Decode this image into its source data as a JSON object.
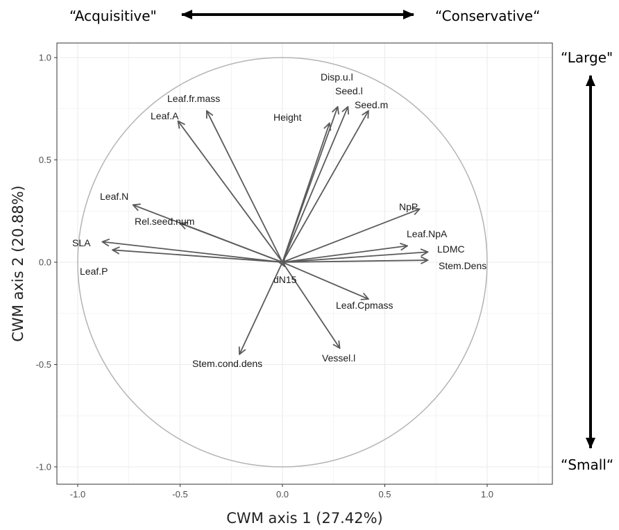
{
  "annotations": {
    "left_top": "“Acquisitive\"",
    "right_top": "“Conservative“",
    "right_top_axis": "“Large\"",
    "right_bottom_axis": "“Small“"
  },
  "chart_data": {
    "type": "scatter",
    "subtype": "pca-correlation-circle",
    "title": "",
    "xlabel": "CWM axis 1 (27.42%)",
    "ylabel": "CWM axis 2 (20.88%)",
    "xlim": [
      -1.0,
      1.0
    ],
    "ylim": [
      -1.0,
      1.0
    ],
    "xticks": [
      "-1.0",
      "-0.5",
      "0.0",
      "0.5",
      "1.0"
    ],
    "yticks": [
      "1.0",
      "0.5",
      "0.0",
      "-0.5",
      "-1.0"
    ],
    "grid": true,
    "unit_circle": true,
    "colors": {
      "arrow": "#5a5a5a",
      "circle": "#b3b3b3",
      "grid": "#ebebeb",
      "border": "#333333"
    },
    "vectors": [
      {
        "label": "Leaf.A",
        "x": -0.51,
        "y": 0.69
      },
      {
        "label": "Leaf.fr.mass",
        "x": -0.37,
        "y": 0.74
      },
      {
        "label": "Height",
        "x": 0.23,
        "y": 0.68
      },
      {
        "label": "Disp.u.l",
        "x": 0.27,
        "y": 0.76
      },
      {
        "label": "Seed.l",
        "x": 0.32,
        "y": 0.76
      },
      {
        "label": "Seed.m",
        "x": 0.42,
        "y": 0.74
      },
      {
        "label": "Leaf.N",
        "x": -0.73,
        "y": 0.28
      },
      {
        "label": "Rel.seed.num",
        "x": -0.5,
        "y": 0.19
      },
      {
        "label": "SLA",
        "x": -0.88,
        "y": 0.1
      },
      {
        "label": "Leaf.P",
        "x": -0.83,
        "y": 0.06
      },
      {
        "label": "NpP",
        "x": 0.67,
        "y": 0.26
      },
      {
        "label": "Leaf.NpA",
        "x": 0.61,
        "y": 0.08
      },
      {
        "label": "LDMC",
        "x": 0.71,
        "y": 0.05
      },
      {
        "label": "Stem.Dens",
        "x": 0.71,
        "y": 0.01
      },
      {
        "label": "dN15",
        "x": 0.01,
        "y": -0.02
      },
      {
        "label": "Leaf.Cpmass",
        "x": 0.42,
        "y": -0.18
      },
      {
        "label": "Vessel.l",
        "x": 0.28,
        "y": -0.42
      },
      {
        "label": "Stem.cond.dens",
        "x": -0.21,
        "y": -0.45
      }
    ]
  }
}
